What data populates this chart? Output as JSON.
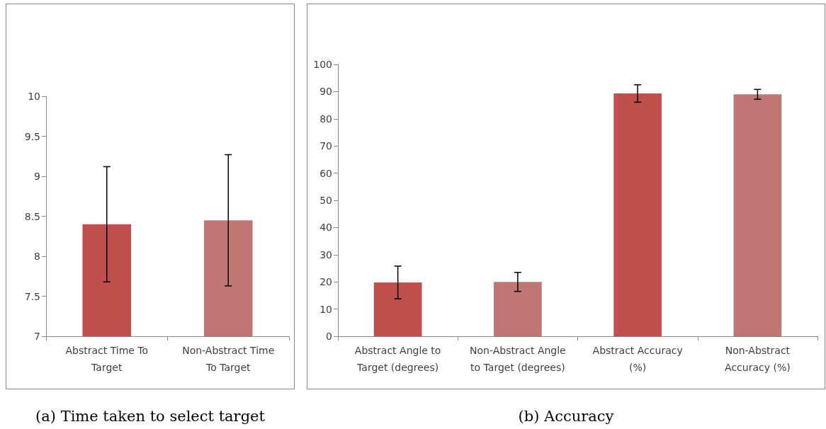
{
  "chart_data": [
    {
      "type": "bar",
      "title": "(a) Time taken to select target",
      "categories": [
        "Abstract Time To Target",
        "Non-Abstract Time To Target"
      ],
      "values": [
        8.4,
        8.45
      ],
      "colors": [
        "#c0504d",
        "#c07673"
      ],
      "errors": [
        0.72,
        0.82
      ],
      "ylim": [
        7,
        10
      ],
      "yticks": [
        7,
        7.5,
        8,
        8.5,
        9,
        9.5,
        10
      ],
      "grid": false
    },
    {
      "type": "bar",
      "title": "(b) Accuracy",
      "categories": [
        "Abstract Angle to Target (degrees)",
        "Non-Abstract Angle to Target (degrees)",
        "Abstract Accuracy (%)",
        "Non-Abstract Accuracy (%)"
      ],
      "values": [
        19.8,
        20,
        89.3,
        89
      ],
      "colors": [
        "#c0504d",
        "#c07673",
        "#c0504d",
        "#c07673"
      ],
      "errors": [
        6,
        3.5,
        3.2,
        1.8
      ],
      "ylim": [
        0,
        100
      ],
      "yticks": [
        0,
        10,
        20,
        30,
        40,
        50,
        60,
        70,
        80,
        90,
        100
      ],
      "grid": false
    }
  ]
}
